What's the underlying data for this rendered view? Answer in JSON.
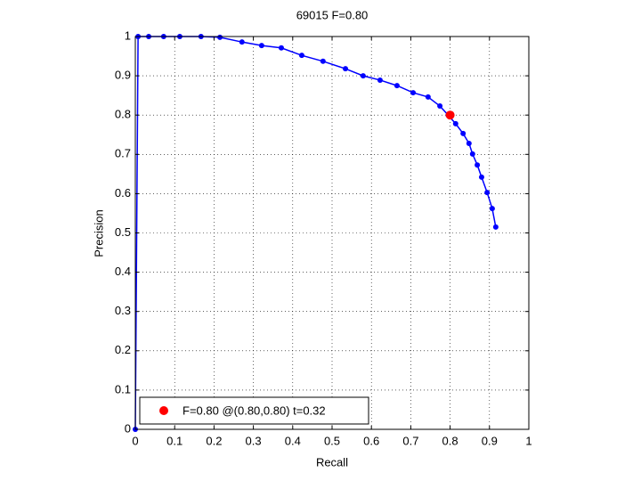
{
  "chart_data": {
    "type": "line",
    "title": "69015 F=0.80",
    "x_label": "Recall",
    "y_label": "Precision",
    "xlim": [
      0,
      1
    ],
    "ylim": [
      0,
      1
    ],
    "xticks": [
      0,
      0.1,
      0.2,
      0.3,
      0.4,
      0.5,
      0.6,
      0.7,
      0.8,
      0.9,
      1
    ],
    "yticks": [
      0,
      0.1,
      0.2,
      0.3,
      0.4,
      0.5,
      0.6,
      0.7,
      0.8,
      0.9,
      1
    ],
    "grid": true,
    "legend": "lower left",
    "series": [
      {
        "color": "#0000ff",
        "marker": "dot",
        "line": true,
        "x": [
          0,
          0.007,
          0.034,
          0.072,
          0.113,
          0.167,
          0.215,
          0.271,
          0.321,
          0.371,
          0.423,
          0.477,
          0.534,
          0.579,
          0.622,
          0.665,
          0.706,
          0.744,
          0.774,
          0.795,
          0.814,
          0.833,
          0.848,
          0.857,
          0.869,
          0.88,
          0.894,
          0.907,
          0.916
        ],
        "values": [
          0,
          1.0,
          1.0,
          1.0,
          1.0,
          1.0,
          0.998,
          0.986,
          0.977,
          0.971,
          0.952,
          0.937,
          0.918,
          0.9,
          0.889,
          0.875,
          0.857,
          0.846,
          0.823,
          0.8,
          0.778,
          0.753,
          0.728,
          0.701,
          0.673,
          0.642,
          0.603,
          0.562,
          0.515
        ]
      },
      {
        "name": "F=0.80 @(0.80,0.80) t=0.32",
        "color": "#ff0000",
        "marker": "big-dot",
        "line": false,
        "x": [
          0.8
        ],
        "values": [
          0.8
        ]
      }
    ]
  }
}
